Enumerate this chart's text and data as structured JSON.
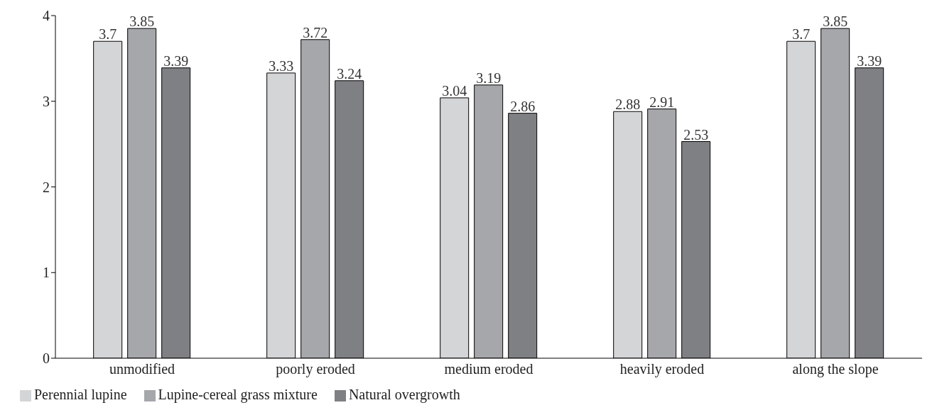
{
  "chart_data": {
    "type": "bar",
    "categories": [
      "unmodified",
      "poorly eroded",
      "medium eroded",
      "heavily eroded",
      "along the slope"
    ],
    "series": [
      {
        "name": "Perennial lupine",
        "color": "#d4d5d7",
        "values": [
          3.7,
          3.33,
          3.04,
          2.88,
          3.7
        ]
      },
      {
        "name": "Lupine-cereal grass mixture",
        "color": "#a6a7ab",
        "values": [
          3.85,
          3.72,
          3.19,
          2.91,
          3.85
        ]
      },
      {
        "name": "Natural overgrowth",
        "color": "#7f8084",
        "values": [
          3.39,
          3.24,
          2.86,
          2.53,
          3.39
        ]
      }
    ],
    "ylim": [
      0,
      4
    ],
    "yticks": [
      0,
      1,
      2,
      3,
      4
    ],
    "grid": false,
    "legend": "bottom left",
    "data_labels": true
  }
}
